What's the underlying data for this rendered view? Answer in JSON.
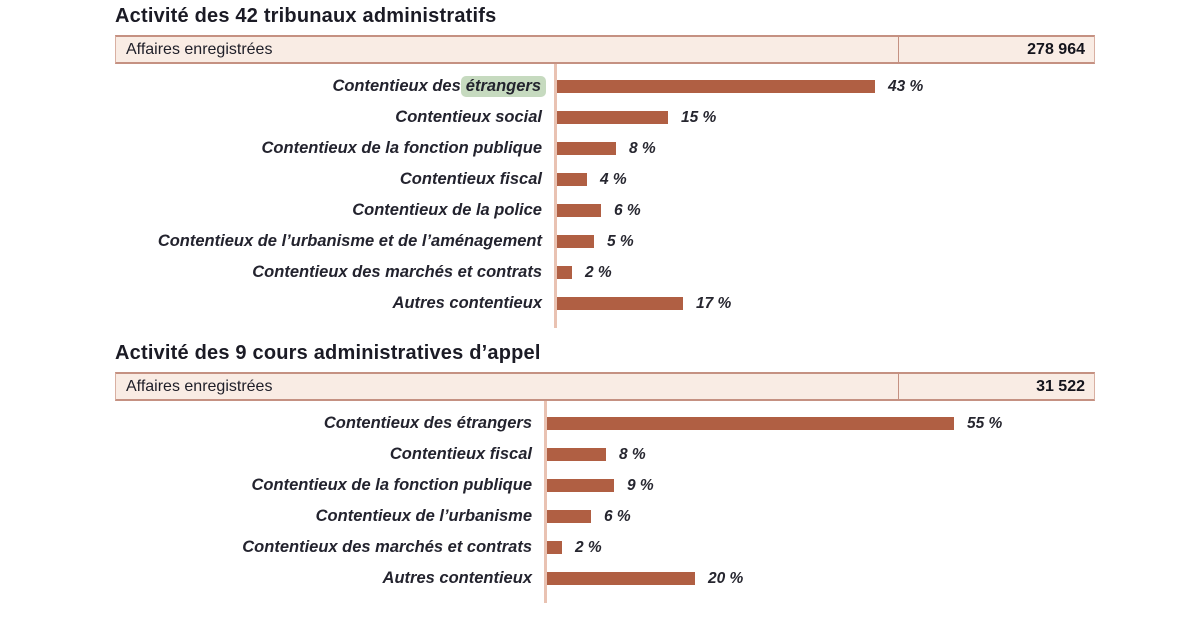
{
  "colors": {
    "bar_fill": "#b05f43",
    "axis_line": "#e9c2b2",
    "header_fill": "#f9ece4",
    "header_border": "#c59182",
    "title_text": "#1b1b25",
    "label_text": "#23232e",
    "highlight_green": "#c6dabf"
  },
  "chart_data": [
    {
      "type": "bar",
      "orientation": "horizontal",
      "title": "Activité des 42 tribunaux administratifs",
      "header_label": "Affaires enregistrées",
      "header_value": "278 964",
      "categories": [
        "Contentieux des étrangers",
        "Contentieux social",
        "Contentieux de la fonction publique",
        "Contentieux fiscal",
        "Contentieux de la police",
        "Contentieux de l’urbanisme et de l’aménagement",
        "Contentieux des marchés et contrats",
        "Autres contentieux"
      ],
      "values": [
        43,
        15,
        8,
        4,
        6,
        5,
        2,
        17
      ],
      "value_labels": [
        "43 %",
        "15 %",
        "8 %",
        "4 %",
        "6 %",
        "5 %",
        "2 %",
        "17 %"
      ],
      "highlight": {
        "row": 0,
        "word": "étrangers"
      },
      "xlim": [
        0,
        60
      ],
      "grid": false,
      "legend": false
    },
    {
      "type": "bar",
      "orientation": "horizontal",
      "title": "Activité des 9 cours administratives d’appel",
      "header_label": "Affaires enregistrées",
      "header_value": "31 522",
      "categories": [
        "Contentieux des étrangers",
        "Contentieux fiscal",
        "Contentieux de la fonction publique",
        "Contentieux de l’urbanisme",
        "Contentieux des marchés et contrats",
        "Autres contentieux"
      ],
      "values": [
        55,
        8,
        9,
        6,
        2,
        20
      ],
      "value_labels": [
        "55 %",
        "8 %",
        "9 %",
        "6 %",
        "2 %",
        "20 %"
      ],
      "highlight": null,
      "xlim": [
        0,
        60
      ],
      "grid": false,
      "legend": false
    }
  ]
}
